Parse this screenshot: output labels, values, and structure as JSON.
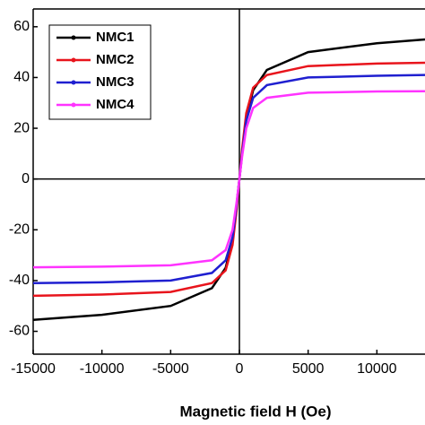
{
  "chart_data": {
    "type": "line",
    "x_label": "Magnetic field H (Oe)",
    "x": [
      -15000,
      -10000,
      -5000,
      -2000,
      -1000,
      -500,
      -200,
      0,
      200,
      500,
      1000,
      2000,
      5000,
      10000,
      13500
    ],
    "series": [
      {
        "name": "NMC1",
        "color": "#000000",
        "values": [
          -55.5,
          -53.5,
          -50,
          -43,
          -35,
          -24,
          -10,
          0,
          10,
          24,
          35,
          43,
          50,
          53.5,
          55
        ]
      },
      {
        "name": "NMC2",
        "color": "#e8141c",
        "values": [
          -46,
          -45.5,
          -44.5,
          -41,
          -36,
          -26,
          -12,
          0,
          12,
          26,
          36,
          41,
          44.5,
          45.5,
          45.8
        ]
      },
      {
        "name": "NMC3",
        "color": "#1f1fd0",
        "values": [
          -41,
          -40.7,
          -40,
          -37,
          -32,
          -23,
          -10,
          0,
          10,
          23,
          32,
          37,
          40,
          40.7,
          41
        ]
      },
      {
        "name": "NMC4",
        "color": "#ff33ff",
        "values": [
          -34.8,
          -34.5,
          -34,
          -32,
          -28,
          -20,
          -9,
          0,
          9,
          20,
          28,
          32,
          34,
          34.5,
          34.6
        ]
      }
    ],
    "xlim": [
      -15000,
      13500
    ],
    "xticks": [
      -15000,
      -10000,
      -5000,
      0,
      5000,
      10000
    ],
    "ylim": [
      -69,
      67
    ],
    "yticks": [
      -60,
      -40,
      -20,
      0,
      20,
      40,
      60
    ],
    "legend": "upper left"
  }
}
